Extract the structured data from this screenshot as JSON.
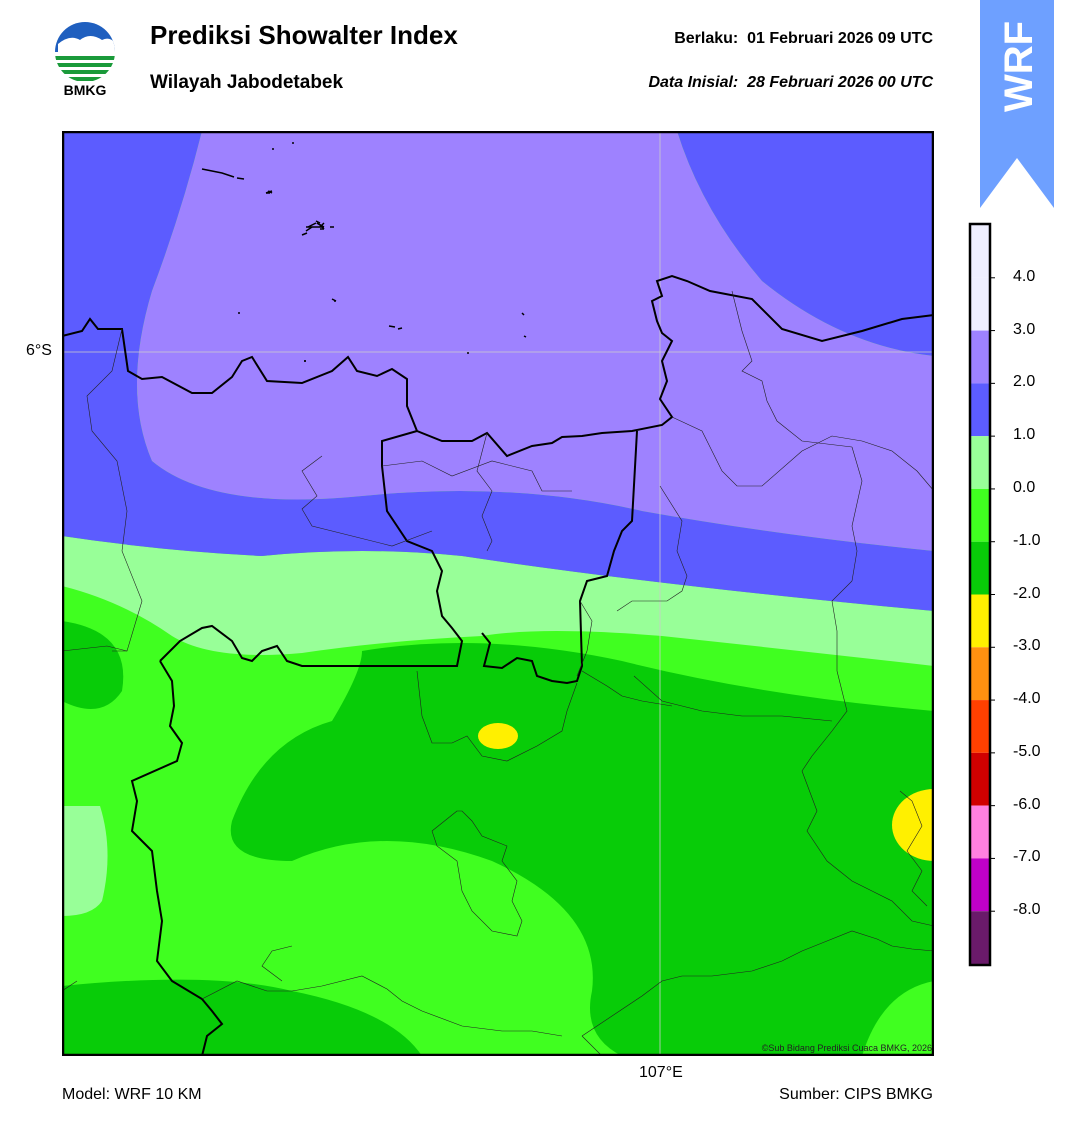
{
  "header": {
    "logo_text": "BMKG",
    "title": "Prediksi Showalter Index",
    "subtitle": "Wilayah Jabodetabek",
    "valid_label": "Berlaku:  01 Februari 2026 09 UTC",
    "init_label": "Data Inisial:  28 Februari 2026 00 UTC",
    "model_badge": "WRF"
  },
  "map": {
    "lat_label": "6°S",
    "lon_label": "107°E",
    "copyright": "©Sub Bidang Prediksi Cuaca BMKG, 2026",
    "field": "Showalter Index"
  },
  "footer": {
    "model": "Model: WRF 10 KM",
    "source": "Sumber: CIPS BMKG"
  },
  "legend": {
    "bins": [
      {
        "from": 4.0,
        "to": 5.0,
        "color": "#eeeeff"
      },
      {
        "from": 3.0,
        "to": 4.0,
        "color": "#eeeeff"
      },
      {
        "from": 2.0,
        "to": 3.0,
        "color": "#9e82ff"
      },
      {
        "from": 1.0,
        "to": 2.0,
        "color": "#5c5cff"
      },
      {
        "from": 0.0,
        "to": 1.0,
        "color": "#98ff98"
      },
      {
        "from": -1.0,
        "to": 0.0,
        "color": "#40ff20"
      },
      {
        "from": -2.0,
        "to": -1.0,
        "color": "#08cc08"
      },
      {
        "from": -3.0,
        "to": -2.0,
        "color": "#fff000"
      },
      {
        "from": -4.0,
        "to": -3.0,
        "color": "#ff9010"
      },
      {
        "from": -5.0,
        "to": -4.0,
        "color": "#ff4000"
      },
      {
        "from": -6.0,
        "to": -5.0,
        "color": "#d00000"
      },
      {
        "from": -7.0,
        "to": -6.0,
        "color": "#ff80e0"
      },
      {
        "from": -8.0,
        "to": -7.0,
        "color": "#c000c8"
      },
      {
        "from": -9.0,
        "to": -8.0,
        "color": "#6a1a6a"
      }
    ],
    "tick_labels": [
      "4.0",
      "3.0",
      "2.0",
      "1.0",
      "0.0",
      "-1.0",
      "-2.0",
      "-3.0",
      "-4.0",
      "-5.0",
      "-6.0",
      "-7.0",
      "-8.0"
    ]
  }
}
